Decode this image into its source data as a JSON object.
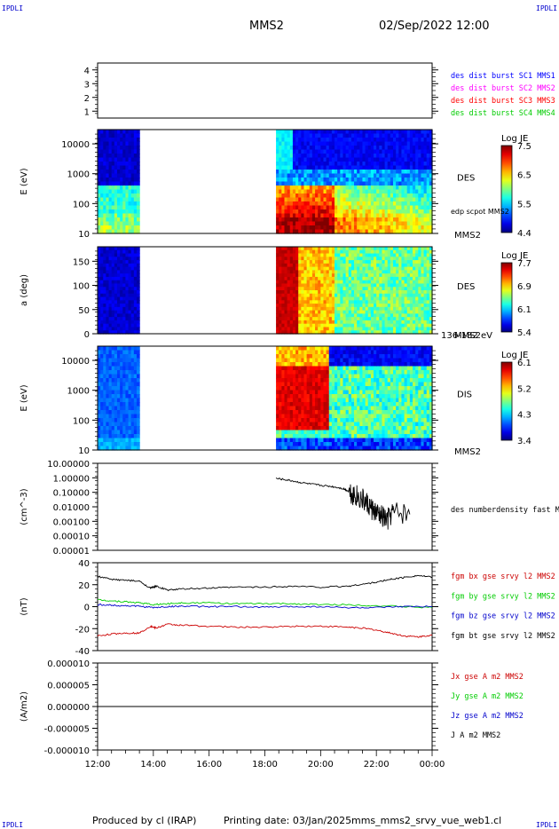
{
  "header": {
    "corner_label": "IPDLI",
    "spacecraft": "MMS2",
    "datetime": "02/Sep/2022 12:00"
  },
  "footer": {
    "produced_by": "Produced by cl (IRAP)",
    "printing_date": "Printing date: 03/Jan/2025",
    "filename": "mms_mms2_srvy_vue_web1.cl"
  },
  "time_axis": {
    "start_hour": 12,
    "end_hour": 24,
    "tick_labels": [
      "12:00",
      "14:00",
      "16:00",
      "18:00",
      "20:00",
      "22:00",
      "00:00"
    ]
  },
  "chart_data": [
    {
      "type": "line",
      "id": "burst",
      "ylim": [
        0.5,
        4.5
      ],
      "ytick_labels": [
        "1",
        "2",
        "3",
        "4"
      ],
      "ylabel": "",
      "legend": [
        {
          "text": "des dist burst SC1 MMS1",
          "color": "#0000ff"
        },
        {
          "text": "des dist burst SC2 MMS2",
          "color": "#ff00ff"
        },
        {
          "text": "des dist burst SC3 MMS3",
          "color": "#ff0000"
        },
        {
          "text": "des dist burst SC4 MMS4",
          "color": "#00cc00"
        }
      ],
      "series": []
    },
    {
      "type": "heatmap",
      "id": "des_energy",
      "ylabel": "E (eV)",
      "scale": "log",
      "ylim": [
        10,
        30000
      ],
      "ytick_labels": [
        "10",
        "100",
        "1000",
        "10000"
      ],
      "instrument": "DES",
      "spacecraft": "MMS2",
      "overlay_label": "edp scpot MMS2",
      "colorbar": {
        "title": "Log JE",
        "min": 4.4,
        "max": 7.5,
        "tick_labels": [
          "7.5",
          "6.5",
          "5.5",
          "4.4"
        ]
      },
      "data_gaps": [
        [
          13.5,
          18.4
        ]
      ]
    },
    {
      "type": "heatmap",
      "id": "des_pitch",
      "ylabel": "a (deg)",
      "ylim": [
        0,
        180
      ],
      "ytick_labels": [
        "0",
        "50",
        "100",
        "150"
      ],
      "instrument": "DES",
      "spacecraft": "MMS2",
      "energy_band": "136-182 eV",
      "colorbar": {
        "title": "Log JE",
        "min": 5.4,
        "max": 7.7,
        "tick_labels": [
          "7.7",
          "6.9",
          "6.1",
          "5.4"
        ]
      },
      "data_gaps": [
        [
          13.5,
          18.4
        ]
      ]
    },
    {
      "type": "heatmap",
      "id": "dis_energy",
      "ylabel": "E (eV)",
      "scale": "log",
      "ylim": [
        10,
        30000
      ],
      "ytick_labels": [
        "10",
        "100",
        "1000",
        "10000"
      ],
      "instrument": "DIS",
      "spacecraft": "MMS2",
      "colorbar": {
        "title": "Log JE",
        "min": 3.4,
        "max": 6.1,
        "tick_labels": [
          "6.1",
          "5.2",
          "4.3",
          "3.4"
        ]
      },
      "data_gaps": [
        [
          13.5,
          18.4
        ]
      ]
    },
    {
      "type": "line",
      "id": "density",
      "ylabel": "(cm^-3)",
      "scale": "log",
      "ylim": [
        1e-05,
        10
      ],
      "ytick_labels": [
        "10.00000",
        "1.00000",
        "0.10000",
        "0.01000",
        "0.00100",
        "0.00010",
        "0.00001"
      ],
      "legend": [
        {
          "text": "des numberdensity fast M",
          "color": "#000000"
        }
      ],
      "series": [
        {
          "name": "des numberdensity fast M",
          "color": "#000000",
          "x": [
            18.4,
            18.8,
            19.2,
            19.6,
            20.0,
            20.4,
            20.8,
            21.0,
            21.2,
            21.4,
            21.6,
            21.8,
            22.0,
            22.2,
            22.4,
            22.6,
            23.2
          ],
          "y": [
            0.9,
            0.7,
            0.5,
            0.38,
            0.3,
            0.25,
            0.18,
            0.12,
            0.07,
            0.04,
            0.02,
            0.008,
            0.003,
            0.002,
            0.001,
            0.004,
            0.003
          ]
        }
      ]
    },
    {
      "type": "line",
      "id": "magnetic",
      "ylabel": "(nT)",
      "ylim": [
        -45,
        45
      ],
      "ytick_labels": [
        "40",
        "20",
        "0",
        "-20",
        "-40"
      ],
      "legend": [
        {
          "text": "fgm bx gse srvy l2 MMS2",
          "color": "#cc0000"
        },
        {
          "text": "fgm by gse srvy l2 MMS2",
          "color": "#00cc00"
        },
        {
          "text": "fgm bz gse srvy l2 MMS2",
          "color": "#0000cc"
        },
        {
          "text": "fgm bt gse srvy l2 MMS2",
          "color": "#000000"
        }
      ],
      "series": [
        {
          "name": "fgm bx gse srvy l2 MMS2",
          "color": "#cc0000",
          "x": [
            12,
            12.5,
            13,
            13.5,
            13.9,
            14.1,
            14.5,
            15,
            16,
            17,
            18,
            19,
            20,
            21,
            21.5,
            22,
            22.5,
            23,
            23.5,
            24
          ],
          "y": [
            -30,
            -28,
            -27,
            -27,
            -20,
            -22,
            -18,
            -19,
            -20,
            -21,
            -21,
            -20,
            -20,
            -21,
            -22,
            -24,
            -27,
            -30,
            -31,
            -29
          ]
        },
        {
          "name": "fgm by gse srvy l2 MMS2",
          "color": "#00cc00",
          "x": [
            12,
            12.5,
            13,
            13.5,
            14,
            14.5,
            15,
            16,
            17,
            18,
            19,
            20,
            21,
            22,
            23,
            24
          ],
          "y": [
            7,
            6,
            5,
            4,
            2,
            3,
            4,
            4,
            3,
            3,
            3,
            2,
            2,
            1,
            0,
            -1
          ]
        },
        {
          "name": "fgm bz gse srvy l2 MMS2",
          "color": "#0000cc",
          "x": [
            12,
            12.5,
            13,
            13.5,
            14,
            14.5,
            15,
            16,
            17,
            18,
            19,
            20,
            21,
            22,
            23,
            24
          ],
          "y": [
            2,
            1.5,
            1,
            0.5,
            -1,
            0,
            0.5,
            0,
            0,
            -0.5,
            0,
            0,
            -1,
            -1,
            0,
            0
          ]
        },
        {
          "name": "fgm bt gse srvy l2 MMS2",
          "color": "#000000",
          "x": [
            12,
            12.5,
            13,
            13.5,
            13.9,
            14.1,
            14.5,
            15,
            16,
            17,
            18,
            19,
            20,
            21,
            21.5,
            22,
            22.5,
            23,
            23.5,
            24
          ],
          "y": [
            31,
            28,
            27,
            26,
            19,
            21,
            17,
            18,
            19,
            20,
            20,
            21,
            20,
            21,
            23,
            25,
            28,
            30,
            32,
            30
          ]
        }
      ]
    },
    {
      "type": "line",
      "id": "current",
      "ylabel": "(A/m2)",
      "ylim": [
        -1e-05,
        1e-05
      ],
      "ytick_labels": [
        "0.000010",
        "0.000005",
        "0.000000",
        "-0.000005",
        "-0.000010"
      ],
      "legend": [
        {
          "text": "Jx gse A m2 MMS2",
          "color": "#cc0000"
        },
        {
          "text": "Jy gse A m2 MMS2",
          "color": "#00cc00"
        },
        {
          "text": "Jz gse A m2 MMS2",
          "color": "#0000cc"
        },
        {
          "text": "J A m2 MMS2",
          "color": "#000000"
        }
      ],
      "series": [
        {
          "name": "J A m2 MMS2",
          "color": "#000000",
          "x": [
            12,
            14,
            16,
            18,
            20,
            22,
            24
          ],
          "y": [
            0,
            0,
            0,
            0,
            0,
            0,
            0
          ]
        }
      ]
    }
  ]
}
